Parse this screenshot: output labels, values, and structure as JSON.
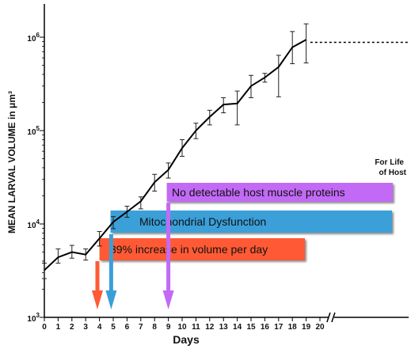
{
  "chart_data": {
    "type": "line",
    "y_scale": "log",
    "ylim": [
      1000,
      1500000
    ],
    "xlim": [
      0,
      20
    ],
    "xlabel": "Days",
    "ylabel": "MEAN LARVAL VOLUME  in μm³",
    "x_ticks": [
      0,
      1,
      2,
      3,
      4,
      5,
      6,
      7,
      8,
      9,
      10,
      11,
      12,
      13,
      14,
      15,
      16,
      17,
      18,
      19,
      20
    ],
    "y_ticks": [
      {
        "value": 1000,
        "base": "10",
        "exp": "3"
      },
      {
        "value": 10000,
        "base": "10",
        "exp": "4"
      },
      {
        "value": 100000,
        "base": "10",
        "exp": "5"
      },
      {
        "value": 1000000,
        "base": "10",
        "exp": "6"
      }
    ],
    "series": [
      {
        "x": [
          0,
          1,
          2,
          3,
          4,
          5,
          6,
          7,
          8,
          9,
          10,
          11,
          12,
          13,
          14,
          15,
          16,
          17,
          18,
          19
        ],
        "y": [
          3200,
          4400,
          5000,
          4700,
          7000,
          10500,
          13500,
          17500,
          28000,
          38000,
          65000,
          100000,
          140000,
          190000,
          195000,
          300000,
          370000,
          480000,
          780000,
          940000
        ],
        "y_err_low": [
          2600,
          3800,
          4300,
          4100,
          5800,
          8900,
          11800,
          14500,
          22500,
          31000,
          53000,
          82000,
          115000,
          155000,
          115000,
          225000,
          330000,
          230000,
          520000,
          530000
        ],
        "y_err_high": [
          3800,
          5400,
          5900,
          5400,
          8300,
          12000,
          15500,
          19500,
          34000,
          45000,
          80000,
          120000,
          165000,
          225000,
          265000,
          390000,
          410000,
          640000,
          1150000,
          1390000
        ]
      }
    ],
    "extension": {
      "from_x": 19.3,
      "to_x": 26.5,
      "y": 880000,
      "style": "dashed"
    },
    "axis_break": {
      "x": 20.8
    },
    "arrows": [
      {
        "x": 3.85,
        "color": "#ff5a36"
      },
      {
        "x": 4.85,
        "color": "#3a9fd8"
      },
      {
        "x": 9.0,
        "color": "#c26af5"
      }
    ],
    "bands": [
      {
        "label": "No detectable host muscle proteins",
        "start_x": 9.0,
        "color": "#c26af5"
      },
      {
        "label": "Mitochondrial Dysfunction",
        "start_x": 4.8,
        "color": "#3a9fd8"
      },
      {
        "label": "39% increase in volume per day",
        "start_x": 4.0,
        "color": "#ff5a36"
      }
    ],
    "note": [
      "For Life",
      "of Host"
    ]
  }
}
